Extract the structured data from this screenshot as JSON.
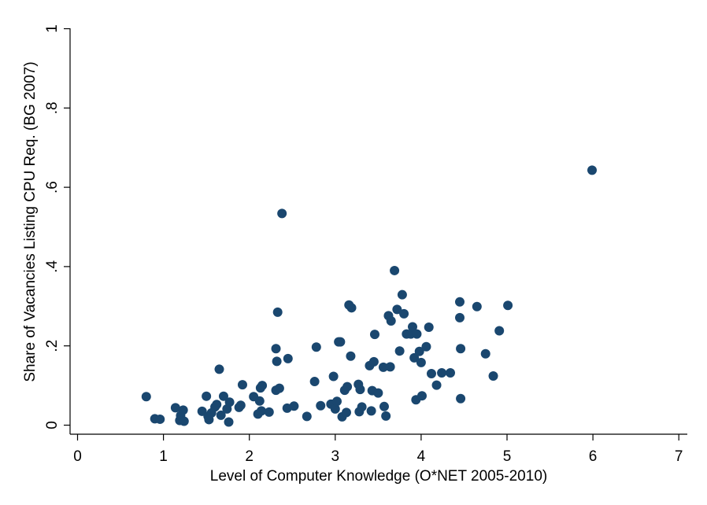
{
  "chart_data": {
    "type": "scatter",
    "title": "",
    "xlabel": "Level of Computer Knowledge (O*NET 2005-2010)",
    "ylabel": "Share of Vacancies Listing CPU Req. (BG 2007)",
    "xlim": [
      0,
      7
    ],
    "ylim": [
      0,
      1
    ],
    "xticks": [
      0,
      1,
      2,
      3,
      4,
      5,
      6,
      7
    ],
    "xtick_labels": [
      "0",
      "1",
      "2",
      "3",
      "4",
      "5",
      "6",
      "7"
    ],
    "yticks": [
      0,
      0.2,
      0.4,
      0.6,
      0.8,
      1
    ],
    "ytick_labels": [
      "0",
      ".2",
      ".4",
      ".6",
      ".8",
      "1"
    ],
    "grid": false,
    "legend": "none",
    "marker_color": "#1a476f",
    "points": [
      [
        0.8,
        0.072
      ],
      [
        0.9,
        0.016
      ],
      [
        0.96,
        0.015
      ],
      [
        1.14,
        0.044
      ],
      [
        1.19,
        0.012
      ],
      [
        1.2,
        0.024
      ],
      [
        1.23,
        0.038
      ],
      [
        1.24,
        0.01
      ],
      [
        1.45,
        0.035
      ],
      [
        1.5,
        0.073
      ],
      [
        1.52,
        0.022
      ],
      [
        1.53,
        0.014
      ],
      [
        1.56,
        0.031
      ],
      [
        1.6,
        0.046
      ],
      [
        1.62,
        0.052
      ],
      [
        1.65,
        0.141
      ],
      [
        1.67,
        0.025
      ],
      [
        1.7,
        0.073
      ],
      [
        1.74,
        0.041
      ],
      [
        1.76,
        0.008
      ],
      [
        1.77,
        0.058
      ],
      [
        1.88,
        0.045
      ],
      [
        1.9,
        0.05
      ],
      [
        1.92,
        0.102
      ],
      [
        2.05,
        0.072
      ],
      [
        2.1,
        0.028
      ],
      [
        2.12,
        0.061
      ],
      [
        2.13,
        0.094
      ],
      [
        2.14,
        0.036
      ],
      [
        2.15,
        0.1
      ],
      [
        2.23,
        0.033
      ],
      [
        2.31,
        0.193
      ],
      [
        2.31,
        0.088
      ],
      [
        2.32,
        0.161
      ],
      [
        2.33,
        0.285
      ],
      [
        2.35,
        0.093
      ],
      [
        2.38,
        0.534
      ],
      [
        2.44,
        0.043
      ],
      [
        2.45,
        0.168
      ],
      [
        2.52,
        0.048
      ],
      [
        2.67,
        0.022
      ],
      [
        2.76,
        0.11
      ],
      [
        2.78,
        0.197
      ],
      [
        2.83,
        0.049
      ],
      [
        2.95,
        0.053
      ],
      [
        2.98,
        0.123
      ],
      [
        3.0,
        0.041
      ],
      [
        3.02,
        0.06
      ],
      [
        3.04,
        0.21
      ],
      [
        3.06,
        0.21
      ],
      [
        3.08,
        0.021
      ],
      [
        3.11,
        0.088
      ],
      [
        3.13,
        0.032
      ],
      [
        3.14,
        0.097
      ],
      [
        3.16,
        0.303
      ],
      [
        3.18,
        0.174
      ],
      [
        3.19,
        0.296
      ],
      [
        3.27,
        0.103
      ],
      [
        3.28,
        0.034
      ],
      [
        3.29,
        0.09
      ],
      [
        3.31,
        0.046
      ],
      [
        3.4,
        0.15
      ],
      [
        3.42,
        0.036
      ],
      [
        3.43,
        0.087
      ],
      [
        3.45,
        0.16
      ],
      [
        3.46,
        0.229
      ],
      [
        3.5,
        0.081
      ],
      [
        3.56,
        0.146
      ],
      [
        3.57,
        0.047
      ],
      [
        3.59,
        0.023
      ],
      [
        3.62,
        0.276
      ],
      [
        3.64,
        0.147
      ],
      [
        3.65,
        0.263
      ],
      [
        3.69,
        0.39
      ],
      [
        3.72,
        0.292
      ],
      [
        3.75,
        0.187
      ],
      [
        3.78,
        0.329
      ],
      [
        3.8,
        0.281
      ],
      [
        3.83,
        0.23
      ],
      [
        3.88,
        0.23
      ],
      [
        3.9,
        0.248
      ],
      [
        3.92,
        0.17
      ],
      [
        3.94,
        0.064
      ],
      [
        3.95,
        0.23
      ],
      [
        3.98,
        0.186
      ],
      [
        4.0,
        0.158
      ],
      [
        4.01,
        0.074
      ],
      [
        4.06,
        0.198
      ],
      [
        4.09,
        0.247
      ],
      [
        4.12,
        0.13
      ],
      [
        4.18,
        0.101
      ],
      [
        4.24,
        0.132
      ],
      [
        4.34,
        0.132
      ],
      [
        4.45,
        0.311
      ],
      [
        4.45,
        0.271
      ],
      [
        4.46,
        0.193
      ],
      [
        4.46,
        0.067
      ],
      [
        4.65,
        0.299
      ],
      [
        4.75,
        0.18
      ],
      [
        4.84,
        0.124
      ],
      [
        4.91,
        0.238
      ],
      [
        5.01,
        0.302
      ],
      [
        5.99,
        0.643
      ]
    ]
  }
}
